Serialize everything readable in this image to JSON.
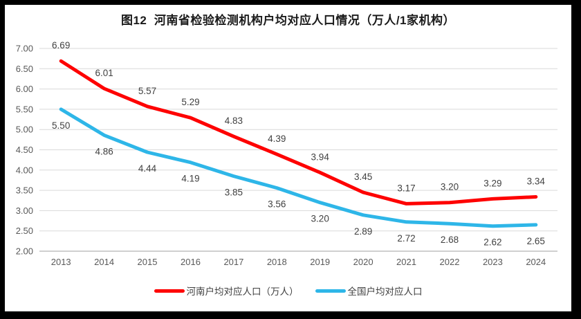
{
  "chart_data": {
    "type": "line",
    "title": "图12  河南省检验检测机构户均对应人口情况（万人/1家机构）",
    "categories": [
      "2013",
      "2014",
      "2015",
      "2016",
      "2017",
      "2018",
      "2019",
      "2020",
      "2021",
      "2022",
      "2023",
      "2024"
    ],
    "series": [
      {
        "name": "河南户均对应人口（万人）",
        "color": "#fe0000",
        "label_position": "above",
        "values": [
          6.69,
          6.01,
          5.57,
          5.29,
          4.83,
          4.39,
          3.94,
          3.45,
          3.17,
          3.2,
          3.29,
          3.34
        ]
      },
      {
        "name": "全国户均对应人口",
        "color": "#2eb6e8",
        "label_position": "below",
        "values": [
          5.5,
          4.86,
          4.44,
          4.19,
          3.85,
          3.56,
          3.2,
          2.89,
          2.72,
          2.68,
          2.62,
          2.65
        ]
      }
    ],
    "ylim": [
      2.0,
      7.0
    ],
    "ytick_step": 0.5,
    "ytick_labels": [
      "7.00",
      "6.50",
      "6.00",
      "5.50",
      "5.00",
      "4.50",
      "4.00",
      "3.50",
      "3.00",
      "2.50",
      "2.00"
    ],
    "value_decimals": 2,
    "grid": true,
    "legend_position": "bottom",
    "colors": {
      "gridline": "#d9d9d9",
      "axis_line": "#bfbfbf",
      "tick_label": "#595959",
      "data_label": "#404040",
      "title": "#1a1a1a",
      "frame_border": "#000000",
      "background": "#ffffff"
    }
  }
}
